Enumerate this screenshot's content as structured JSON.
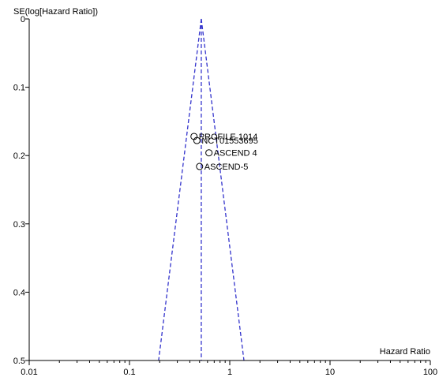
{
  "chart_data": {
    "type": "scatter",
    "subtype": "funnel",
    "xlabel": "Hazard Ratio",
    "ylabel": "SE(log[Hazard Ratio])",
    "x_scale": "log",
    "xlim": [
      0.01,
      100
    ],
    "ylim": [
      0,
      0.5
    ],
    "y_inverted": true,
    "x_ticks": [
      0.01,
      0.1,
      1,
      10,
      100
    ],
    "x_tick_labels": [
      "0.01",
      "0.1",
      "1",
      "10",
      "100"
    ],
    "y_ticks": [
      0,
      0.1,
      0.2,
      0.3,
      0.4,
      0.5
    ],
    "y_tick_labels": [
      "0",
      "0.1",
      "0.2",
      "0.3",
      "0.4",
      "0.5"
    ],
    "pooled_estimate": 0.52,
    "colors": {
      "funnel": "#3333cc",
      "points": "#000000"
    },
    "points": [
      {
        "label": "PROFILE 1014",
        "x": 0.44,
        "y": 0.172
      },
      {
        "label": "NCT01553695",
        "x": 0.47,
        "y": 0.178
      },
      {
        "label": "ASCEND 4",
        "x": 0.62,
        "y": 0.196
      },
      {
        "label": "ASCEND-5",
        "x": 0.5,
        "y": 0.216
      }
    ]
  }
}
